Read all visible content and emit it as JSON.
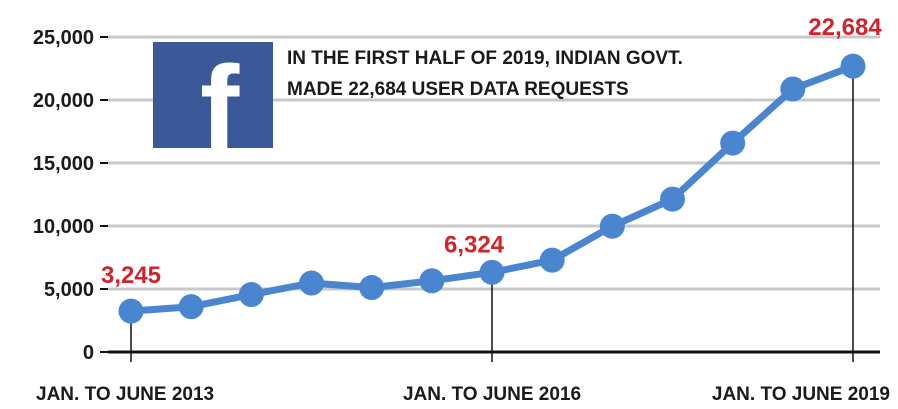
{
  "chart_data": {
    "type": "line",
    "series": [
      {
        "values": [
          3245,
          3598,
          4559,
          5473,
          5115,
          5652,
          6324,
          7289,
          9985,
          12135,
          16580,
          20876,
          22684
        ]
      }
    ],
    "y_ticks": [
      "0",
      "5,000",
      "10,000",
      "15,000",
      "20,000",
      "25,000"
    ],
    "ylim": [
      0,
      25000
    ],
    "grid": true,
    "x_tick_labels": [
      {
        "index": 0,
        "label": "JAN. TO JUNE 2013"
      },
      {
        "index": 6,
        "label": "JAN. TO JUNE 2016"
      },
      {
        "index": 12,
        "label": "JAN. TO JUNE 2019"
      }
    ],
    "data_labels": [
      {
        "index": 0,
        "label": "3,245"
      },
      {
        "index": 6,
        "label": "6,324"
      },
      {
        "index": 12,
        "label": "22,684"
      }
    ],
    "annotation": {
      "line1": "IN THE FIRST HALF OF 2019, INDIAN GOVT.",
      "line2": "MADE 22,684 USER DATA REQUESTS"
    },
    "logo_letter": "f",
    "colors": {
      "line": "#4a86cf",
      "label": "#d0232a",
      "grid": "#c8c8c8",
      "logo_bg": "#3b5998",
      "text": "#1a1a1a"
    }
  }
}
